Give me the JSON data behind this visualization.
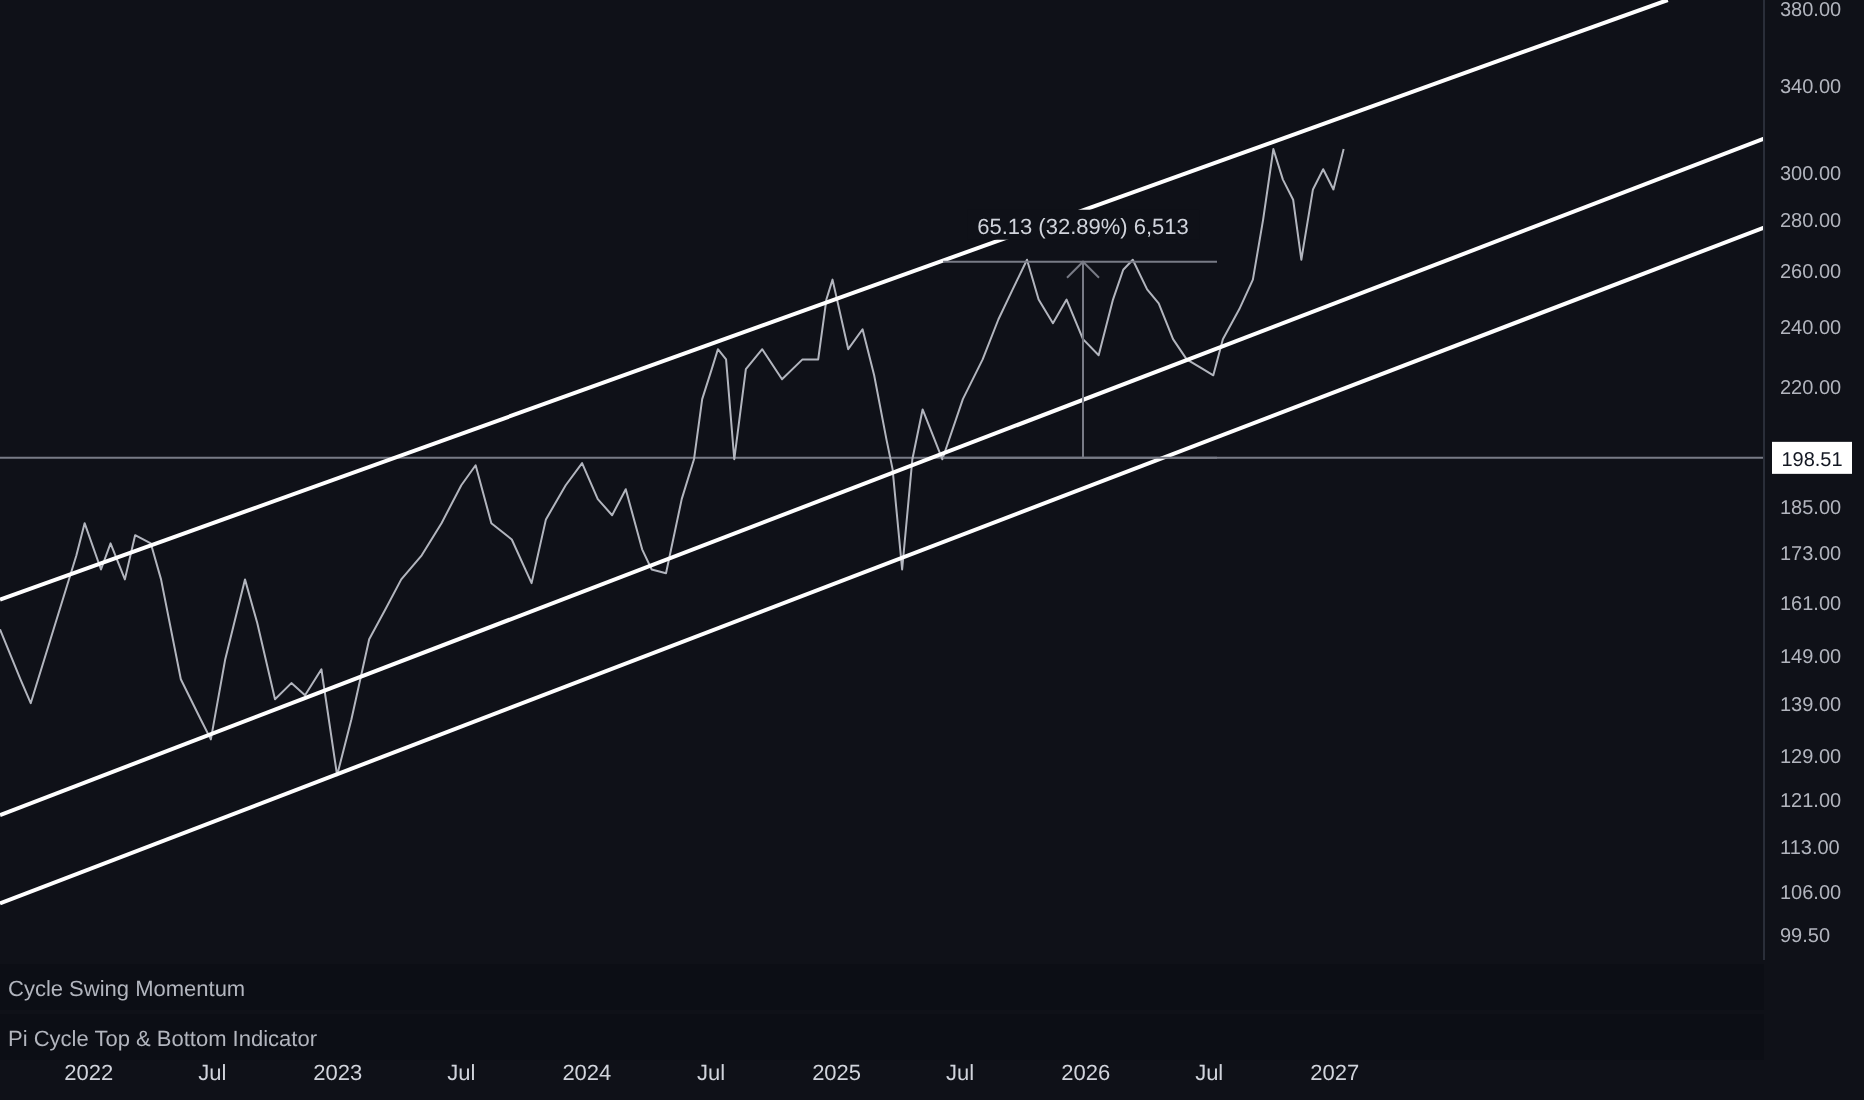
{
  "chart_data": {
    "type": "line",
    "x": [
      "2021-08-24",
      "2021-09-23",
      "2021-10-08",
      "2021-11-06",
      "2021-12-14",
      "2021-12-26",
      "2022-01-19",
      "2022-02-02",
      "2022-02-23",
      "2022-03-10",
      "2022-04-02",
      "2022-04-17",
      "2022-05-16",
      "2022-06-14",
      "2022-06-29",
      "2022-07-20",
      "2022-08-18",
      "2022-09-05",
      "2022-10-01",
      "2022-10-25",
      "2022-11-14",
      "2022-12-08",
      "2022-12-31",
      "2023-01-21",
      "2023-02-16",
      "2023-03-12",
      "2023-04-04",
      "2023-05-04",
      "2023-06-02",
      "2023-07-01",
      "2023-07-22",
      "2023-08-14",
      "2023-09-13",
      "2023-10-12",
      "2023-11-02",
      "2023-12-01",
      "2023-12-25",
      "2024-01-17",
      "2024-02-07",
      "2024-02-27",
      "2024-03-22",
      "2024-04-05",
      "2024-04-26",
      "2024-05-19",
      "2024-06-06",
      "2024-06-18",
      "2024-07-02",
      "2024-07-11",
      "2024-07-23",
      "2024-08-04",
      "2024-08-21",
      "2024-09-14",
      "2024-10-13",
      "2024-11-12",
      "2024-12-05",
      "2024-12-17",
      "2024-12-26",
      "2025-01-18",
      "2025-02-08",
      "2025-02-25",
      "2025-03-15",
      "2025-03-24",
      "2025-04-07",
      "2025-04-22",
      "2025-05-07",
      "2025-06-05",
      "2025-07-05",
      "2025-08-03",
      "2025-08-26",
      "2025-09-16",
      "2025-10-07",
      "2025-10-24",
      "2025-11-14",
      "2025-12-04",
      "2025-12-28",
      "2026-01-20",
      "2026-02-10",
      "2026-02-25",
      "2026-03-11",
      "2026-04-01",
      "2026-04-18",
      "2026-05-09",
      "2026-05-29",
      "2026-06-22",
      "2026-07-07",
      "2026-07-21",
      "2026-08-14",
      "2026-09-03",
      "2026-09-18",
      "2026-10-03",
      "2026-10-17",
      "2026-11-01",
      "2026-11-13",
      "2026-11-30",
      "2026-12-15",
      "2026-12-30",
      "2027-01-14"
    ],
    "series": [
      {
        "color": "#b2b5be",
        "values": [
          154.9,
          144.1,
          139.2,
          152.7,
          172.4,
          180.6,
          168.9,
          175.4,
          166.5,
          177.5,
          175.4,
          166.5,
          144.1,
          136.0,
          132.1,
          148.3,
          166.5,
          156.3,
          140.0,
          143.3,
          140.8,
          146.2,
          125.4,
          136.0,
          152.7,
          159.5,
          166.5,
          172.4,
          180.6,
          190.8,
          196.4,
          180.6,
          176.4,
          165.6,
          181.6,
          190.8,
          197.0,
          187.0,
          182.7,
          189.7,
          173.9,
          168.9,
          168.0,
          187.0,
          198.1,
          216.1,
          225.7,
          232.3,
          228.9,
          198.1,
          225.7,
          232.3,
          222.4,
          228.9,
          228.9,
          249.6,
          256.9,
          232.3,
          239.1,
          223.7,
          203.9,
          195.3,
          168.9,
          198.1,
          212.9,
          198.1,
          216.1,
          228.9,
          242.5,
          253.3,
          264.4,
          249.6,
          241.2,
          249.6,
          235.7,
          230.3,
          249.6,
          260.6,
          264.4,
          253.3,
          248.2,
          235.7,
          228.9,
          225.7,
          223.7,
          235.7,
          246.1,
          256.9,
          280.2,
          310.3,
          296.9,
          288.4,
          264.4,
          292.7,
          301.4,
          292.7,
          310.3
        ]
      },
      {
        "type": "line",
        "color": "#ffffff",
        "x": [
          "2021-08-24",
          "2028-05-03"
        ],
        "values": [
          161.7,
          385
        ]
      },
      {
        "type": "line",
        "color": "#ffffff",
        "x": [
          "2021-08-24",
          "2028-09-21"
        ],
        "values": [
          118.4,
          315
        ]
      },
      {
        "type": "line",
        "color": "#ffffff",
        "x": [
          "2021-08-24",
          "2028-09-21"
        ],
        "values": [
          104.2,
          277
        ]
      }
    ],
    "xlim": [
      "2021-08-24",
      "2028-09-21"
    ],
    "xticks": [
      {
        "value": "2022-01-01",
        "label": "2022"
      },
      {
        "value": "2022-07-01",
        "label": "Jul"
      },
      {
        "value": "2023-01-01",
        "label": "2023"
      },
      {
        "value": "2023-07-01",
        "label": "Jul"
      },
      {
        "value": "2024-01-01",
        "label": "2024"
      },
      {
        "value": "2024-07-01",
        "label": "Jul"
      },
      {
        "value": "2025-01-01",
        "label": "2025"
      },
      {
        "value": "2025-07-01",
        "label": "Jul"
      },
      {
        "value": "2026-01-01",
        "label": "2026"
      },
      {
        "value": "2026-07-01",
        "label": "Jul"
      },
      {
        "value": "2027-01-01",
        "label": "2027"
      }
    ],
    "ylim": [
      96,
      385
    ],
    "log": true,
    "yticks": [
      {
        "value": 99.5,
        "label": "99.50"
      },
      {
        "value": 106,
        "label": "106.00"
      },
      {
        "value": 113,
        "label": "113.00"
      },
      {
        "value": 121,
        "label": "121.00"
      },
      {
        "value": 129,
        "label": "129.00"
      },
      {
        "value": 139,
        "label": "139.00"
      },
      {
        "value": 149,
        "label": "149.00"
      },
      {
        "value": 161,
        "label": "161.00"
      },
      {
        "value": 173,
        "label": "173.00"
      },
      {
        "value": 185,
        "label": "185.00"
      },
      {
        "value": 220,
        "label": "220.00"
      },
      {
        "value": 240,
        "label": "240.00"
      },
      {
        "value": 260,
        "label": "260.00"
      },
      {
        "value": 280,
        "label": "280.00"
      },
      {
        "value": 300,
        "label": "300.00"
      },
      {
        "value": 340,
        "label": "340.00"
      },
      {
        "value": 380,
        "label": "380.00"
      }
    ],
    "ref_lines": [
      {
        "axis": "y",
        "value": 198.51,
        "label": "198.51",
        "color": "#787b86"
      }
    ],
    "annotations": [
      {
        "text": "65.13 (32.89%) 6,513",
        "x": "2025-10-07",
        "y": 263.64
      },
      "Cycle Swing Momentum",
      "Pi Cycle Top & Bottom Indicator"
    ],
    "marker": "none",
    "line_style": "solid",
    "grid": false,
    "legend": false
  }
}
